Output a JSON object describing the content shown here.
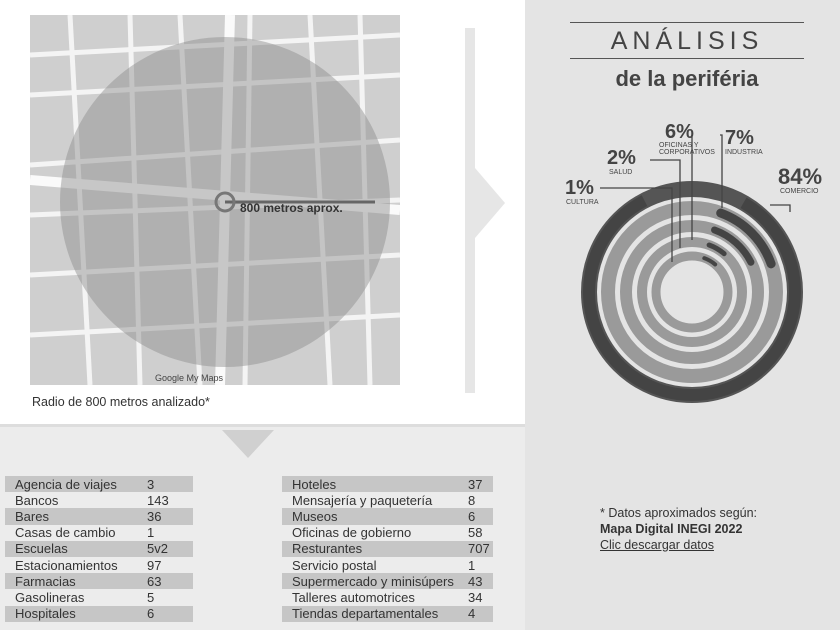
{
  "map": {
    "distance_label": "800 metros aprox.",
    "credit": "Google My Maps",
    "caption": "Radio de 800 metros analizado*"
  },
  "title": {
    "line1": "ANÁLISIS",
    "line2": "de la periféria"
  },
  "chart_data": {
    "type": "pie",
    "title": "ANÁLISIS de la periféria",
    "categories": [
      "CULTURA",
      "SALUD",
      "OFICINAS Y CORPORATIVOS",
      "INDUSTRIA",
      "COMERCIO"
    ],
    "values": [
      1,
      2,
      6,
      7,
      84
    ],
    "labels": [
      "1%",
      "2%",
      "6%",
      "7%",
      "84%"
    ]
  },
  "tables": {
    "left": [
      [
        "Agencia de viajes",
        "3"
      ],
      [
        "Bancos",
        "143"
      ],
      [
        "Bares",
        "36"
      ],
      [
        "Casas de cambio",
        "1"
      ],
      [
        "Escuelas",
        "5v2"
      ],
      [
        "Estacionamientos",
        "97"
      ],
      [
        "Farmacias",
        "63"
      ],
      [
        "Gasolineras",
        "5"
      ],
      [
        "Hospitales",
        "6"
      ]
    ],
    "right": [
      [
        "Hoteles",
        "37"
      ],
      [
        "Mensajería y paquetería",
        "8"
      ],
      [
        "Museos",
        "6"
      ],
      [
        "Oficinas de gobierno",
        "58"
      ],
      [
        "Resturantes",
        "707"
      ],
      [
        "Servicio postal",
        "1"
      ],
      [
        "Supermercado y minisúpers",
        "43"
      ],
      [
        "Talleres automotrices",
        "34"
      ],
      [
        "Tiendas departamentales",
        "4"
      ]
    ]
  },
  "note": {
    "text": "* Datos aproximados según:",
    "source": "Mapa Digital INEGI 2022",
    "link": "Clic descargar datos"
  }
}
